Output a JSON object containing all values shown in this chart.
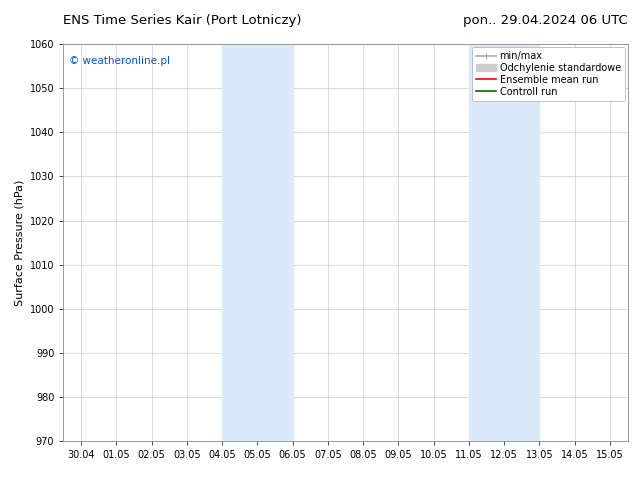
{
  "title_left": "ENS Time Series Kair (Port Lotniczy)",
  "title_right": "pon.. 29.04.2024 06 UTC",
  "ylabel": "Surface Pressure (hPa)",
  "watermark": "© weatheronline.pl",
  "watermark_color": "#0055cc",
  "ylim": [
    970,
    1060
  ],
  "yticks": [
    970,
    980,
    990,
    1000,
    1010,
    1020,
    1030,
    1040,
    1050,
    1060
  ],
  "xtick_labels": [
    "30.04",
    "01.05",
    "02.05",
    "03.05",
    "04.05",
    "05.05",
    "06.05",
    "07.05",
    "08.05",
    "09.05",
    "10.05",
    "11.05",
    "12.05",
    "13.05",
    "14.05",
    "15.05"
  ],
  "shaded_bands": [
    {
      "xstart": 4.0,
      "xend": 6.0
    },
    {
      "xstart": 11.0,
      "xend": 13.0
    }
  ],
  "shaded_color": "#dce9f8",
  "background_color": "#ffffff",
  "legend_entries": [
    {
      "label": "min/max",
      "color": "#aaaaaa",
      "lw": 1.2
    },
    {
      "label": "Odchylenie standardowe",
      "color": "#cccccc",
      "lw": 5
    },
    {
      "label": "Ensemble mean run",
      "color": "#ff0000",
      "lw": 1.2
    },
    {
      "label": "Controll run",
      "color": "#006600",
      "lw": 1.2
    }
  ],
  "grid_color": "#cccccc",
  "title_fontsize": 9.5,
  "tick_fontsize": 7,
  "ylabel_fontsize": 8,
  "watermark_fontsize": 7.5,
  "legend_fontsize": 7
}
